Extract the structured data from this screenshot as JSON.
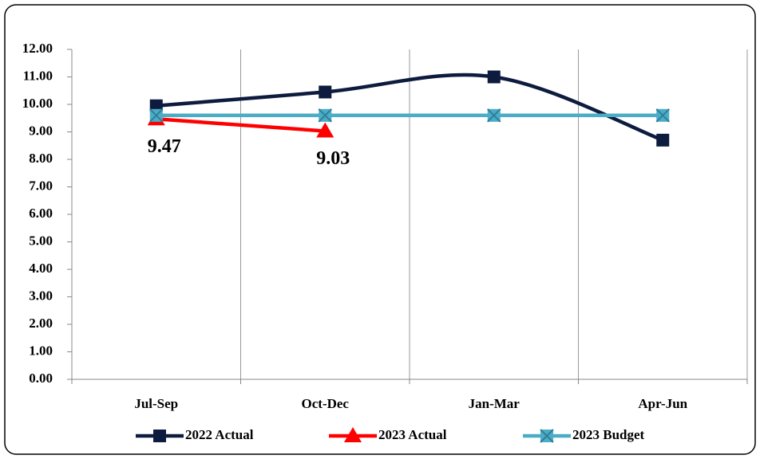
{
  "chart_data": {
    "type": "line",
    "categories": [
      "Jul-Sep",
      "Oct-Dec",
      "Jan-Mar",
      "Apr-Jun"
    ],
    "series": [
      {
        "name": "2022 Actual",
        "color": "#0d1b3e",
        "marker": "square",
        "smooth": true,
        "values": [
          9.95,
          10.45,
          11.0,
          8.7
        ]
      },
      {
        "name": "2023 Actual",
        "color": "#ff0000",
        "marker": "triangle",
        "smooth": false,
        "values": [
          9.47,
          9.03,
          null,
          null
        ],
        "show_value_labels": true
      },
      {
        "name": "2023 Budget",
        "color": "#4bacc6",
        "marker": "x",
        "smooth": false,
        "values": [
          9.6,
          9.6,
          9.6,
          9.6
        ]
      }
    ],
    "ylim": [
      0,
      12
    ],
    "yticks": [
      {
        "value": 0,
        "label": "0.00"
      },
      {
        "value": 1,
        "label": "1.00"
      },
      {
        "value": 2,
        "label": "2.00"
      },
      {
        "value": 3,
        "label": "3.00"
      },
      {
        "value": 4,
        "label": "4.00"
      },
      {
        "value": 5,
        "label": "5.00"
      },
      {
        "value": 6,
        "label": "6.00"
      },
      {
        "value": 7,
        "label": "7.00"
      },
      {
        "value": 8,
        "label": "8.00"
      },
      {
        "value": 9,
        "label": "9.00"
      },
      {
        "value": 10,
        "label": "10.00"
      },
      {
        "value": 11,
        "label": "11.00"
      },
      {
        "value": 12,
        "label": "12.00"
      }
    ],
    "vertical_grid": true,
    "legend": "bottom"
  }
}
